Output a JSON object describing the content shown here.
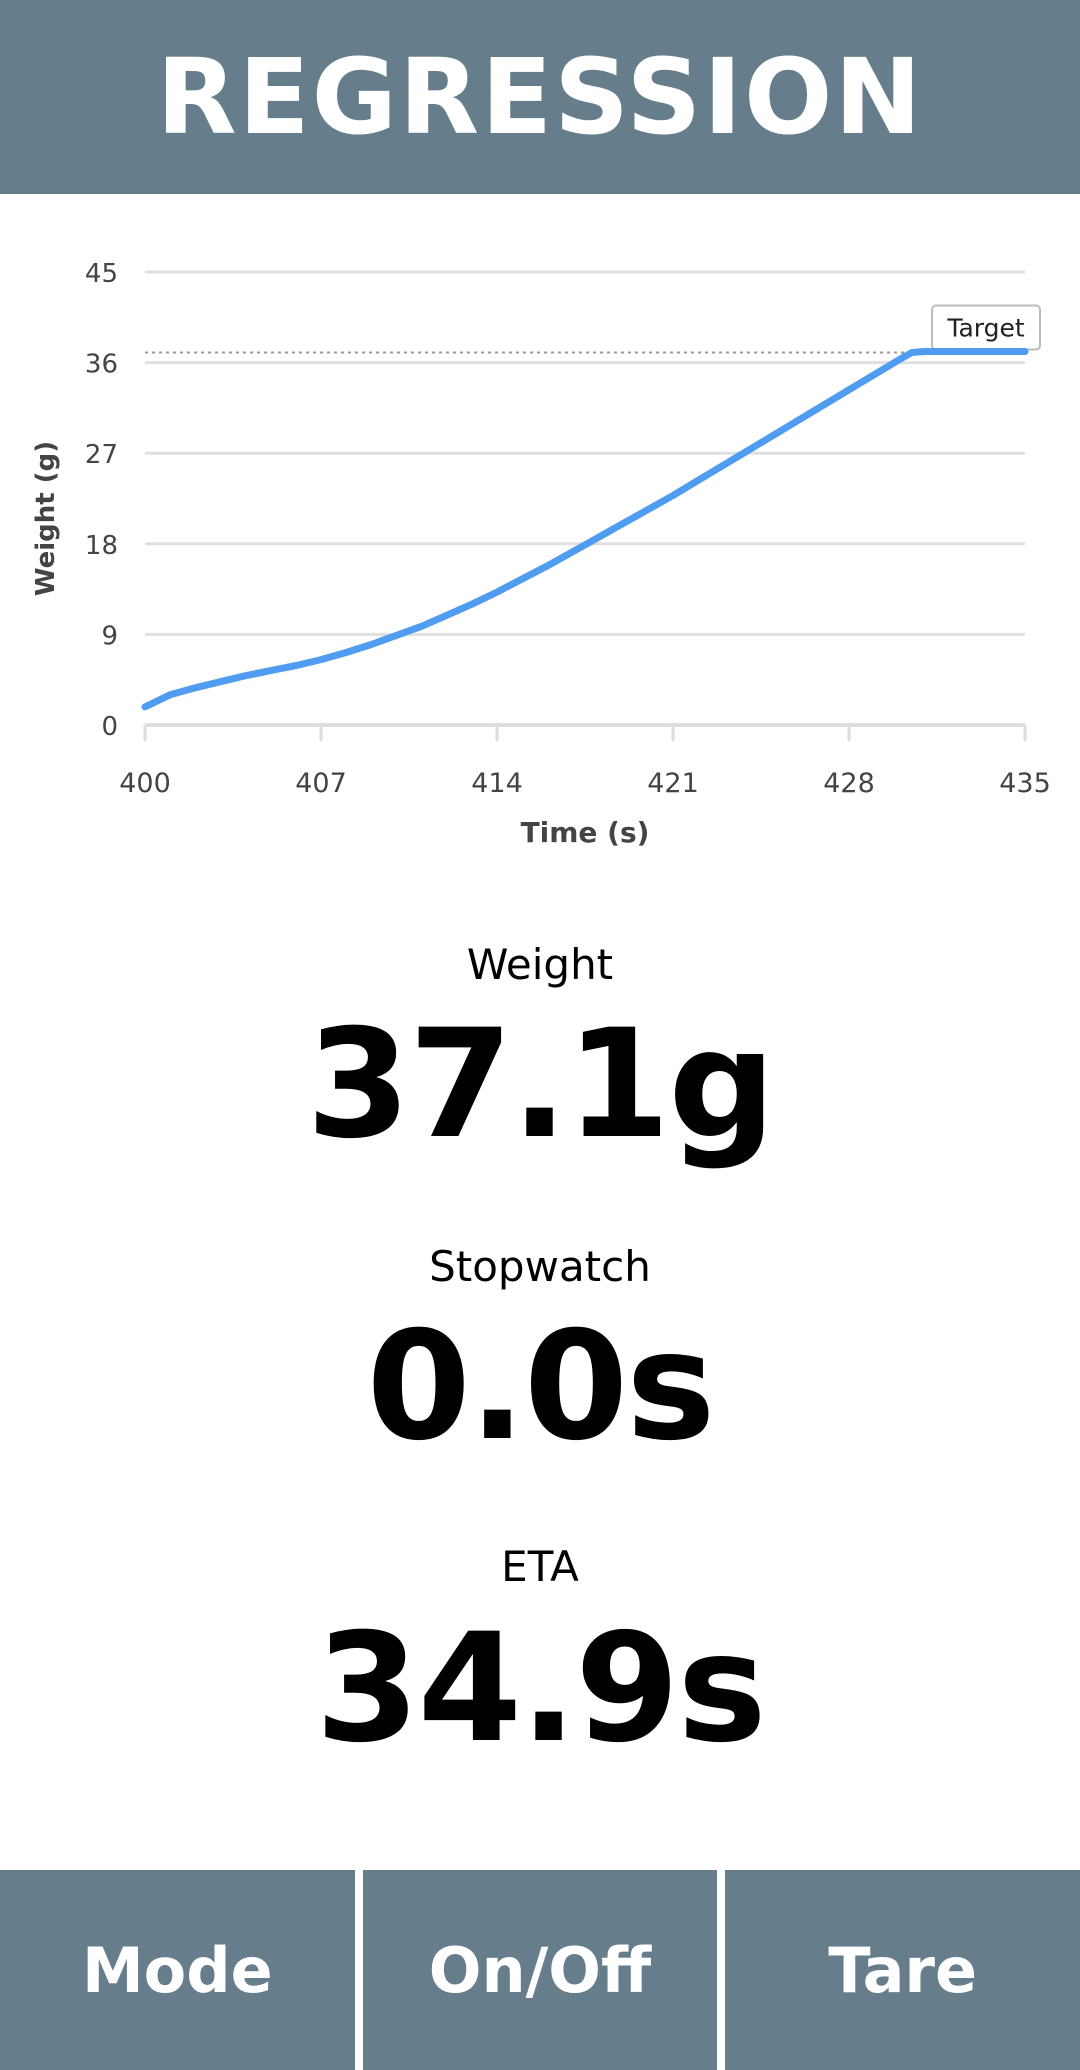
{
  "header": {
    "title": "REGRESSION"
  },
  "chart_data": {
    "type": "line",
    "title": "",
    "xlabel": "Time (s)",
    "ylabel": "Weight (g)",
    "xlim": [
      400,
      435
    ],
    "ylim": [
      0,
      45
    ],
    "x_ticks": [
      400,
      407,
      414,
      421,
      428,
      435
    ],
    "y_ticks": [
      0,
      9,
      18,
      27,
      36,
      45
    ],
    "grid": true,
    "target": {
      "label": "Target",
      "value": 37
    },
    "series": [
      {
        "color": "#4f9cf0",
        "points": [
          [
            400,
            1.8
          ],
          [
            401,
            3.0
          ],
          [
            402,
            3.7
          ],
          [
            403,
            4.3
          ],
          [
            404,
            4.9
          ],
          [
            405,
            5.4
          ],
          [
            406,
            5.9
          ],
          [
            407,
            6.5
          ],
          [
            408,
            7.2
          ],
          [
            409,
            8.0
          ],
          [
            410,
            8.9
          ],
          [
            411,
            9.8
          ],
          [
            412,
            10.9
          ],
          [
            413,
            12.0
          ],
          [
            414,
            13.2
          ],
          [
            415,
            14.5
          ],
          [
            416,
            15.8
          ],
          [
            417,
            17.2
          ],
          [
            418,
            18.6
          ],
          [
            419,
            20.0
          ],
          [
            420,
            21.4
          ],
          [
            421,
            22.8
          ],
          [
            422,
            24.3
          ],
          [
            423,
            25.8
          ],
          [
            424,
            27.3
          ],
          [
            425,
            28.8
          ],
          [
            426,
            30.3
          ],
          [
            427,
            31.8
          ],
          [
            428,
            33.3
          ],
          [
            429,
            34.8
          ],
          [
            430,
            36.3
          ],
          [
            430.5,
            37.0
          ],
          [
            431,
            37.1
          ],
          [
            432,
            37.1
          ],
          [
            433,
            37.1
          ],
          [
            434,
            37.1
          ],
          [
            435,
            37.1
          ]
        ]
      }
    ]
  },
  "metrics": {
    "weight": {
      "label": "Weight",
      "value": "37.1g"
    },
    "stopwatch": {
      "label": "Stopwatch",
      "value": "0.0s"
    },
    "eta": {
      "label": "ETA",
      "value": "34.9s"
    }
  },
  "footer": {
    "mode_label": "Mode",
    "onoff_label": "On/Off",
    "tare_label": "Tare"
  }
}
